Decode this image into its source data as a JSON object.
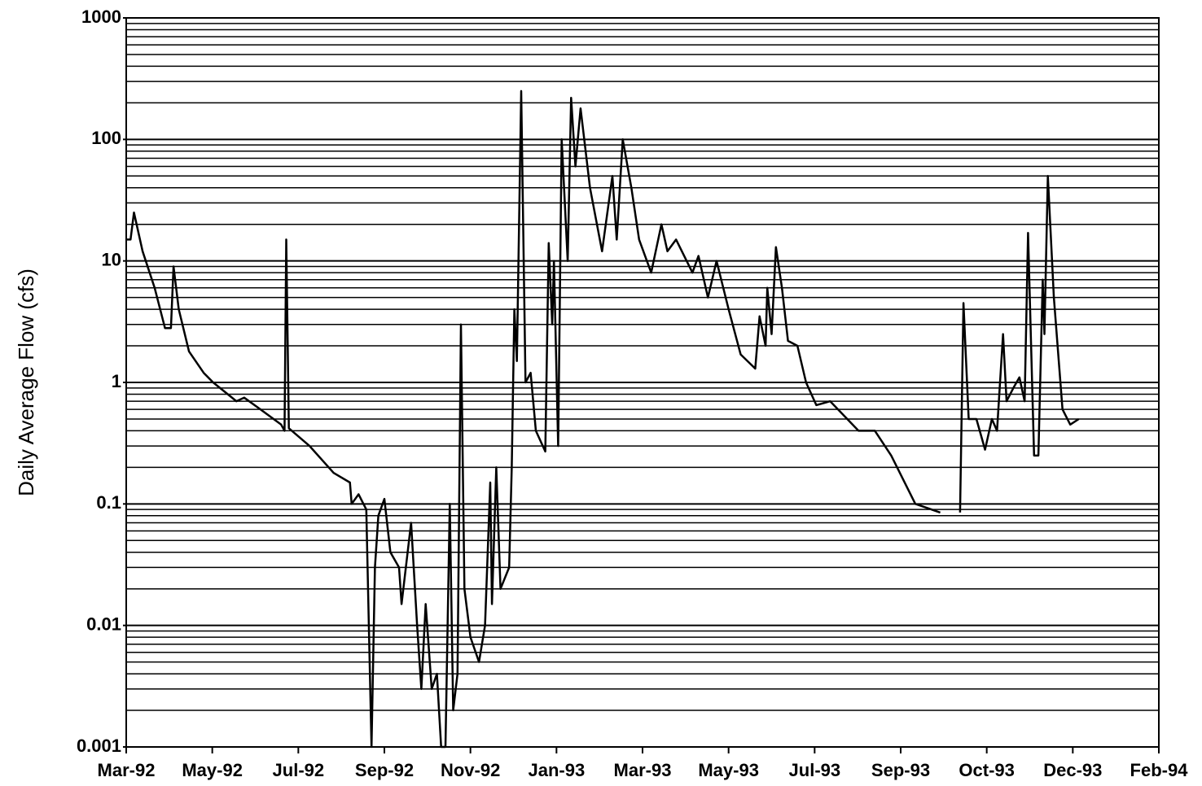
{
  "chart_data": {
    "type": "line",
    "ylabel": "Daily Average Flow (cfs)",
    "log_y": true,
    "grid": true,
    "color": "#000000",
    "xlim": [
      0,
      12
    ],
    "xticks": [
      {
        "value": 0,
        "label": "Mar-92"
      },
      {
        "value": 1,
        "label": "May-92"
      },
      {
        "value": 2,
        "label": "Jul-92"
      },
      {
        "value": 3,
        "label": "Sep-92"
      },
      {
        "value": 4,
        "label": "Nov-92"
      },
      {
        "value": 5,
        "label": "Jan-93"
      },
      {
        "value": 6,
        "label": "Mar-93"
      },
      {
        "value": 7,
        "label": "May-93"
      },
      {
        "value": 8,
        "label": "Jul-93"
      },
      {
        "value": 9,
        "label": "Sep-93"
      },
      {
        "value": 10,
        "label": "Oct-93"
      },
      {
        "value": 11,
        "label": "Dec-93"
      },
      {
        "value": 12,
        "label": "Feb-94"
      }
    ],
    "ylim": [
      0.001,
      1000
    ],
    "yticks": [
      0.001,
      0.01,
      0.1,
      1,
      10,
      100,
      1000
    ],
    "x": [
      0,
      0.05,
      0.09,
      0.19,
      0.33,
      0.45,
      0.52,
      0.55,
      0.61,
      0.73,
      0.9,
      1.01,
      1.18,
      1.28,
      1.37,
      1.56,
      1.8,
      1.84,
      1.86,
      1.89,
      2.13,
      2.41,
      2.6,
      2.62,
      2.7,
      2.79,
      2.85,
      2.89,
      2.93,
      3.0,
      3.07,
      3.17,
      3.2,
      3.31,
      3.38,
      3.43,
      3.48,
      3.55,
      3.61,
      3.66,
      3.71,
      3.76,
      3.8,
      3.85,
      3.89,
      3.93,
      4.0,
      4.1,
      4.17,
      4.23,
      4.25,
      4.3,
      4.35,
      4.45,
      4.48,
      4.51,
      4.54,
      4.59,
      4.64,
      4.7,
      4.76,
      4.87,
      4.91,
      4.95,
      4.97,
      5.02,
      5.06,
      5.13,
      5.17,
      5.22,
      5.28,
      5.39,
      5.53,
      5.65,
      5.7,
      5.77,
      5.87,
      5.96,
      6.1,
      6.22,
      6.29,
      6.39,
      6.58,
      6.65,
      6.76,
      6.86,
      7.0,
      7.14,
      7.31,
      7.36,
      7.43,
      7.45,
      7.5,
      7.55,
      7.62,
      7.69,
      7.8,
      7.9,
      8.02,
      8.18,
      8.51,
      8.7,
      8.89,
      9.17,
      9.46,
      9.58,
      9.69,
      9.73,
      9.79,
      9.88,
      9.98,
      10.06,
      10.12,
      10.19,
      10.23,
      10.31,
      10.38,
      10.44,
      10.48,
      10.55,
      10.6,
      10.65,
      10.67,
      10.71,
      10.78,
      10.88,
      10.97,
      11.07
    ],
    "values": [
      15,
      15,
      25,
      12,
      6,
      2.8,
      2.8,
      9,
      4,
      1.8,
      1.2,
      1.0,
      0.8,
      0.7,
      0.75,
      0.6,
      0.45,
      0.4,
      15,
      0.42,
      0.3,
      0.18,
      0.15,
      0.1,
      0.12,
      0.09,
      0.001,
      0.03,
      0.08,
      0.11,
      0.04,
      0.03,
      0.015,
      0.07,
      0.01,
      0.003,
      0.015,
      0.003,
      0.004,
      0.001,
      0.001,
      0.1,
      0.002,
      0.004,
      3,
      0.02,
      0.008,
      0.005,
      0.01,
      0.15,
      0.015,
      0.2,
      0.02,
      0.03,
      0.2,
      4,
      1.5,
      250,
      1,
      1.2,
      0.4,
      0.27,
      14,
      3,
      10,
      0.3,
      100,
      10,
      220,
      60,
      180,
      40,
      12,
      50,
      15,
      100,
      40,
      15,
      8,
      20,
      12,
      15,
      8,
      11,
      5,
      10,
      4,
      1.7,
      1.3,
      3.5,
      2,
      6,
      2.5,
      13,
      6,
      2.2,
      2,
      1,
      0.65,
      0.7,
      0.4,
      0.4,
      0.25,
      0.1,
      0.085,
      null,
      0.085,
      4.5,
      0.5,
      0.5,
      0.28,
      0.5,
      0.4,
      2.5,
      0.7,
      0.9,
      1.1,
      0.7,
      17,
      0.25,
      0.25,
      7,
      2.5,
      50,
      5,
      0.6,
      0.45,
      0.5
    ]
  }
}
